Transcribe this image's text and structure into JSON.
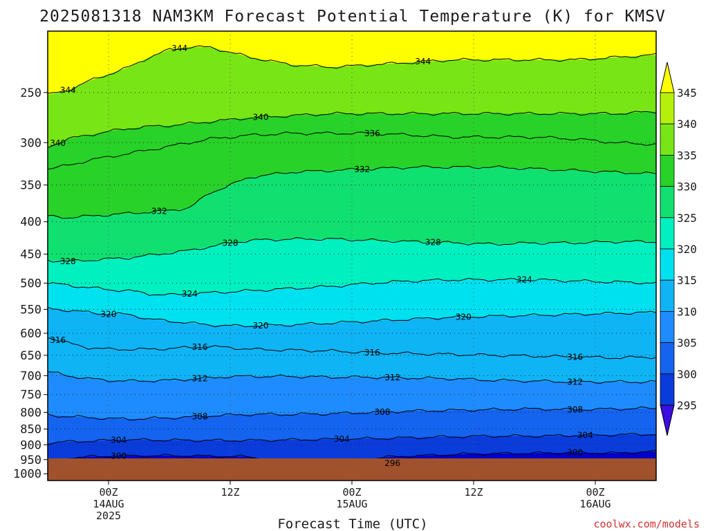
{
  "chart_data": {
    "type": "heatmap",
    "title": "2025081318 NAM3KM Forecast Potential Temperature (K) for KMSV",
    "xlabel": "Forecast Time (UTC)",
    "ylabel": "",
    "credit": "coolwx.com/models",
    "y_ticks": [
      250,
      300,
      350,
      400,
      450,
      500,
      550,
      600,
      650,
      700,
      750,
      800,
      850,
      900,
      950,
      1000
    ],
    "ylim": [
      200,
      1025
    ],
    "y_inverted": true,
    "x_hours_range": [
      18,
      78
    ],
    "x_ticks": [
      {
        "hour": 24,
        "lines": [
          "00Z",
          "14AUG",
          "2025"
        ]
      },
      {
        "hour": 36,
        "lines": [
          "12Z"
        ]
      },
      {
        "hour": 48,
        "lines": [
          "00Z",
          "15AUG"
        ]
      },
      {
        "hour": 60,
        "lines": [
          "12Z"
        ]
      },
      {
        "hour": 72,
        "lines": [
          "00Z",
          "16AUG"
        ]
      }
    ],
    "colorbar": {
      "levels": [
        295,
        300,
        305,
        310,
        315,
        320,
        325,
        330,
        335,
        340,
        345
      ],
      "colors": [
        "#3a0fe0",
        "#0000c8",
        "#0a3cdc",
        "#1464f0",
        "#1e8cff",
        "#0fb4f5",
        "#00e1f0",
        "#00f0c0",
        "#10e070",
        "#28d228",
        "#78e614",
        "#b4f00a",
        "#ffff00"
      ],
      "extend": "both"
    },
    "surface_pressure_hpa": 965,
    "contour_interval": 4,
    "grid": true,
    "contours": [
      {
        "level": 296,
        "p": [
          [
            44,
            963
          ],
          [
            50,
            963
          ],
          [
            56,
            962
          ],
          [
            62,
            962
          ],
          [
            66,
            963
          ],
          [
            70,
            963
          ],
          [
            74,
            962
          ],
          [
            78,
            962
          ]
        ],
        "label_hour": 52
      },
      {
        "level": 300,
        "p": [
          [
            18,
            956
          ],
          [
            19,
            955
          ],
          [
            20,
            945
          ],
          [
            22,
            940
          ],
          [
            24,
            938
          ],
          [
            26,
            937
          ],
          [
            30,
            936
          ],
          [
            34,
            938
          ],
          [
            38,
            940
          ],
          [
            40,
            955
          ],
          [
            42,
            958
          ],
          [
            44,
            955
          ],
          [
            48,
            952
          ],
          [
            52,
            940
          ],
          [
            56,
            935
          ],
          [
            60,
            930
          ],
          [
            66,
            928
          ],
          [
            70,
            926
          ],
          [
            74,
            928
          ],
          [
            78,
            922
          ]
        ],
        "label_hour": 25,
        "label_hour2": 70
      },
      {
        "level": 304,
        "p": [
          [
            18,
            895
          ],
          [
            20,
            890
          ],
          [
            22,
            888
          ],
          [
            24,
            886
          ],
          [
            26,
            884
          ],
          [
            30,
            885
          ],
          [
            34,
            886
          ],
          [
            38,
            886
          ],
          [
            42,
            884
          ],
          [
            46,
            882
          ],
          [
            50,
            880
          ],
          [
            54,
            877
          ],
          [
            58,
            874
          ],
          [
            62,
            872
          ],
          [
            66,
            872
          ],
          [
            70,
            870
          ],
          [
            74,
            868
          ],
          [
            78,
            866
          ]
        ],
        "label_hour": 25,
        "label_hour2": 47,
        "label_hour3": 71
      },
      {
        "level": 308,
        "p": [
          [
            18,
            808
          ],
          [
            20,
            812
          ],
          [
            22,
            815
          ],
          [
            24,
            818
          ],
          [
            26,
            820
          ],
          [
            28,
            818
          ],
          [
            30,
            816
          ],
          [
            32,
            814
          ],
          [
            34,
            810
          ],
          [
            36,
            808
          ],
          [
            38,
            806
          ],
          [
            42,
            806
          ],
          [
            46,
            804
          ],
          [
            50,
            800
          ],
          [
            54,
            796
          ],
          [
            58,
            794
          ],
          [
            62,
            792
          ],
          [
            66,
            790
          ],
          [
            70,
            792
          ],
          [
            74,
            790
          ],
          [
            78,
            788
          ]
        ],
        "label_hour": 33,
        "label_hour2": 51,
        "label_hour3": 70
      },
      {
        "level": 312,
        "p": [
          [
            18,
            690
          ],
          [
            20,
            700
          ],
          [
            22,
            708
          ],
          [
            24,
            712
          ],
          [
            26,
            714
          ],
          [
            30,
            712
          ],
          [
            34,
            706
          ],
          [
            36,
            702
          ],
          [
            38,
            702
          ],
          [
            42,
            702
          ],
          [
            46,
            704
          ],
          [
            50,
            704
          ],
          [
            54,
            706
          ],
          [
            58,
            708
          ],
          [
            62,
            712
          ],
          [
            66,
            714
          ],
          [
            70,
            716
          ],
          [
            74,
            716
          ],
          [
            78,
            716
          ]
        ],
        "label_hour": 33,
        "label_hour2": 52,
        "label_hour3": 70
      },
      {
        "level": 316,
        "p": [
          [
            18,
            608
          ],
          [
            20,
            622
          ],
          [
            22,
            632
          ],
          [
            24,
            636
          ],
          [
            26,
            636
          ],
          [
            28,
            636
          ],
          [
            30,
            634
          ],
          [
            32,
            632
          ],
          [
            34,
            630
          ],
          [
            36,
            632
          ],
          [
            38,
            636
          ],
          [
            42,
            638
          ],
          [
            46,
            640
          ],
          [
            50,
            644
          ],
          [
            54,
            646
          ],
          [
            58,
            648
          ],
          [
            62,
            650
          ],
          [
            66,
            652
          ],
          [
            70,
            654
          ],
          [
            74,
            656
          ],
          [
            78,
            654
          ]
        ],
        "label_hour": 19,
        "label_hour2": 33,
        "label_hour3": 50,
        "label_hour4": 70
      },
      {
        "level": 320,
        "p": [
          [
            18,
            548
          ],
          [
            20,
            552
          ],
          [
            22,
            556
          ],
          [
            24,
            560
          ],
          [
            26,
            560
          ],
          [
            28,
            570
          ],
          [
            30,
            574
          ],
          [
            32,
            578
          ],
          [
            34,
            582
          ],
          [
            36,
            584
          ],
          [
            38,
            584
          ],
          [
            42,
            582
          ],
          [
            46,
            578
          ],
          [
            50,
            574
          ],
          [
            54,
            570
          ],
          [
            58,
            566
          ],
          [
            62,
            564
          ],
          [
            66,
            562
          ],
          [
            70,
            560
          ],
          [
            74,
            558
          ],
          [
            78,
            556
          ]
        ],
        "label_hour": 24,
        "label_hour2": 39,
        "label_hour3": 59
      },
      {
        "level": 324,
        "p": [
          [
            18,
            500
          ],
          [
            20,
            504
          ],
          [
            22,
            508
          ],
          [
            24,
            512
          ],
          [
            26,
            514
          ],
          [
            28,
            520
          ],
          [
            30,
            522
          ],
          [
            32,
            520
          ],
          [
            34,
            518
          ],
          [
            36,
            516
          ],
          [
            38,
            514
          ],
          [
            42,
            510
          ],
          [
            46,
            506
          ],
          [
            50,
            500
          ],
          [
            54,
            496
          ],
          [
            58,
            494
          ],
          [
            62,
            494
          ],
          [
            66,
            494
          ],
          [
            70,
            496
          ],
          [
            74,
            498
          ],
          [
            78,
            500
          ]
        ],
        "label_hour": 32,
        "label_hour2": 65
      },
      {
        "level": 328,
        "p": [
          [
            18,
            460
          ],
          [
            20,
            462
          ],
          [
            22,
            460
          ],
          [
            24,
            458
          ],
          [
            26,
            456
          ],
          [
            28,
            452
          ],
          [
            30,
            448
          ],
          [
            32,
            444
          ],
          [
            34,
            438
          ],
          [
            36,
            432
          ],
          [
            38,
            428
          ],
          [
            42,
            426
          ],
          [
            46,
            426
          ],
          [
            50,
            428
          ],
          [
            54,
            430
          ],
          [
            58,
            432
          ],
          [
            62,
            434
          ],
          [
            66,
            432
          ],
          [
            70,
            432
          ],
          [
            74,
            430
          ],
          [
            78,
            430
          ]
        ],
        "label_hour": 20,
        "label_hour2": 36,
        "label_hour3": 56
      },
      {
        "level": 332,
        "p": [
          [
            18,
            392
          ],
          [
            20,
            394
          ],
          [
            22,
            392
          ],
          [
            24,
            390
          ],
          [
            26,
            388
          ],
          [
            28,
            386
          ],
          [
            30,
            384
          ],
          [
            32,
            380
          ],
          [
            34,
            360
          ],
          [
            36,
            350
          ],
          [
            38,
            340
          ],
          [
            42,
            334
          ],
          [
            46,
            332
          ],
          [
            50,
            330
          ],
          [
            54,
            328
          ],
          [
            58,
            328
          ],
          [
            62,
            328
          ],
          [
            66,
            330
          ],
          [
            70,
            332
          ],
          [
            74,
            334
          ],
          [
            78,
            336
          ]
        ],
        "label_hour": 29,
        "label_hour2": 49
      },
      {
        "level": 336,
        "p": [
          [
            18,
            330
          ],
          [
            20,
            326
          ],
          [
            22,
            320
          ],
          [
            24,
            316
          ],
          [
            26,
            312
          ],
          [
            28,
            308
          ],
          [
            30,
            304
          ],
          [
            32,
            300
          ],
          [
            34,
            296
          ],
          [
            36,
            294
          ],
          [
            38,
            292
          ],
          [
            42,
            290
          ],
          [
            46,
            290
          ],
          [
            50,
            290
          ],
          [
            54,
            292
          ],
          [
            58,
            294
          ],
          [
            62,
            294
          ],
          [
            66,
            294
          ],
          [
            70,
            296
          ],
          [
            74,
            300
          ],
          [
            78,
            302
          ]
        ],
        "label_hour": 50
      },
      {
        "level": 340,
        "p": [
          [
            18,
            305
          ],
          [
            20,
            296
          ],
          [
            22,
            292
          ],
          [
            24,
            288
          ],
          [
            26,
            285
          ],
          [
            28,
            283
          ],
          [
            30,
            282
          ],
          [
            32,
            280
          ],
          [
            34,
            278
          ],
          [
            36,
            276
          ],
          [
            38,
            274
          ],
          [
            42,
            272
          ],
          [
            46,
            270
          ],
          [
            50,
            270
          ],
          [
            54,
            270
          ],
          [
            58,
            270
          ],
          [
            62,
            270
          ],
          [
            66,
            270
          ],
          [
            70,
            270
          ],
          [
            74,
            270
          ],
          [
            78,
            268
          ]
        ],
        "label_hour": 19,
        "label_hour2": 39
      },
      {
        "level": 344,
        "p": [
          [
            18,
            252
          ],
          [
            20,
            248
          ],
          [
            22,
            240
          ],
          [
            24,
            234
          ],
          [
            26,
            228
          ],
          [
            28,
            220
          ],
          [
            30,
            214
          ],
          [
            32,
            212
          ],
          [
            34,
            212
          ],
          [
            36,
            216
          ],
          [
            38,
            220
          ],
          [
            42,
            226
          ],
          [
            46,
            228
          ],
          [
            50,
            226
          ],
          [
            54,
            224
          ],
          [
            58,
            222
          ],
          [
            62,
            222
          ],
          [
            66,
            222
          ],
          [
            70,
            222
          ],
          [
            74,
            220
          ],
          [
            78,
            218
          ]
        ],
        "label_hour": 20,
        "label_hour2": 31,
        "label_hour3": 55
      }
    ]
  }
}
